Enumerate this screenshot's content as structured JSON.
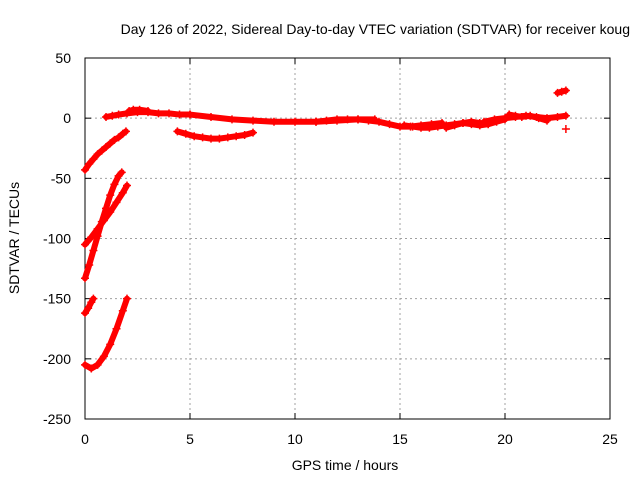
{
  "chart_data": {
    "type": "scatter",
    "title": "Day 126 of 2022, Sidereal Day-to-day VTEC variation (SDTVAR) for receiver koug",
    "xlabel": "GPS time / hours",
    "ylabel": "SDTVAR / TECUs",
    "xlim": [
      0,
      25
    ],
    "ylim": [
      -250,
      50
    ],
    "xticks": [
      0,
      5,
      10,
      15,
      20,
      25
    ],
    "yticks": [
      -250,
      -200,
      -150,
      -100,
      -50,
      0,
      50
    ],
    "xtick_labels": [
      "0",
      "5",
      "10",
      "15",
      "20",
      "25"
    ],
    "ytick_labels": [
      "-250",
      "-200",
      "-150",
      "-100",
      "-50",
      "0",
      "50"
    ],
    "grid": true,
    "marker": "+",
    "color": "#ff0000",
    "series": [
      {
        "name": "arc-upper-0",
        "x": [
          0.0,
          0.2,
          0.4,
          0.6,
          0.8,
          1.0,
          1.2,
          1.4,
          1.6,
          1.8,
          1.95
        ],
        "y": [
          -43,
          -38,
          -34,
          -30,
          -27,
          -24,
          -21,
          -18,
          -16,
          -13,
          -11
        ]
      },
      {
        "name": "arc-1",
        "x": [
          1.0,
          1.3,
          1.6,
          2.0,
          2.5,
          3.0,
          3.5,
          4.0,
          4.5,
          5.0
        ],
        "y": [
          1,
          2,
          3,
          4,
          5,
          5,
          4,
          4,
          3,
          3
        ]
      },
      {
        "name": "arc-2",
        "x": [
          2.1,
          2.3,
          2.6,
          3.0
        ],
        "y": [
          6,
          7,
          7,
          6
        ]
      },
      {
        "name": "arc-3",
        "x": [
          4.4,
          4.8,
          5.2,
          5.6,
          6.0,
          6.4,
          6.8,
          7.2,
          7.6,
          8.0
        ],
        "y": [
          -11,
          -13,
          -15,
          -16,
          -17,
          -17,
          -16,
          -15,
          -14,
          -12
        ]
      },
      {
        "name": "arc-4",
        "x": [
          5.0,
          6.0,
          7.0,
          8.0,
          9.0,
          10.0,
          11.0,
          12.0,
          13.0,
          13.8
        ],
        "y": [
          3,
          1,
          -1,
          -2,
          -3,
          -3,
          -3,
          -2,
          -1,
          -1
        ]
      },
      {
        "name": "arc-5",
        "x": [
          11.0,
          11.5,
          12.0,
          12.5,
          13.0,
          13.5,
          14.0,
          14.5,
          15.0,
          15.5,
          16.0,
          16.5,
          17.0
        ],
        "y": [
          -3,
          -2,
          -1,
          -1,
          -1,
          -2,
          -3,
          -5,
          -7,
          -7,
          -6,
          -5,
          -4
        ]
      },
      {
        "name": "arc-6",
        "x": [
          15.2,
          15.6,
          16.0,
          16.4,
          16.8,
          17.2,
          17.6,
          18.0,
          18.4,
          18.8,
          19.2,
          19.6,
          20.0
        ],
        "y": [
          -6,
          -7,
          -8,
          -8,
          -7,
          -6,
          -5,
          -4,
          -5,
          -6,
          -5,
          -3,
          -1
        ]
      },
      {
        "name": "arc-7",
        "x": [
          17.2,
          17.6,
          18.0,
          18.4,
          18.8,
          19.2
        ],
        "y": [
          -8,
          -6,
          -4,
          -3,
          -4,
          -5
        ]
      },
      {
        "name": "arc-8",
        "x": [
          19.0,
          19.5,
          20.0,
          20.5,
          21.0,
          21.5,
          22.0,
          22.5,
          22.9
        ],
        "y": [
          -3,
          -1,
          0,
          1,
          2,
          1,
          0,
          1,
          2
        ]
      },
      {
        "name": "arc-9",
        "x": [
          20.2,
          20.5,
          20.8,
          21.2,
          21.6,
          22.0
        ],
        "y": [
          3,
          2,
          1,
          2,
          0,
          -2
        ]
      },
      {
        "name": "arc-10",
        "x": [
          22.5,
          22.7,
          22.9
        ],
        "y": [
          21,
          22,
          23
        ]
      },
      {
        "name": "point-11",
        "x": [
          22.9
        ],
        "y": [
          -9
        ]
      },
      {
        "name": "arc-12",
        "x": [
          0.0,
          0.3,
          0.6,
          0.9,
          1.2,
          1.5,
          1.8,
          2.0
        ],
        "y": [
          -105,
          -99,
          -92,
          -85,
          -78,
          -70,
          -62,
          -56
        ]
      },
      {
        "name": "arc-13",
        "x": [
          0.0,
          0.2,
          0.4,
          0.6,
          0.8,
          1.0,
          1.2,
          1.4,
          1.6,
          1.75
        ],
        "y": [
          -133,
          -122,
          -110,
          -98,
          -86,
          -75,
          -64,
          -55,
          -48,
          -45
        ]
      },
      {
        "name": "arc-14",
        "x": [
          0.0,
          0.15,
          0.3,
          0.4
        ],
        "y": [
          -162,
          -158,
          -153,
          -150
        ]
      },
      {
        "name": "arc-15",
        "x": [
          0.0,
          0.3,
          0.6,
          0.9,
          1.2,
          1.5,
          1.8,
          2.0
        ],
        "y": [
          -205,
          -208,
          -205,
          -198,
          -188,
          -175,
          -160,
          -150
        ]
      }
    ]
  }
}
